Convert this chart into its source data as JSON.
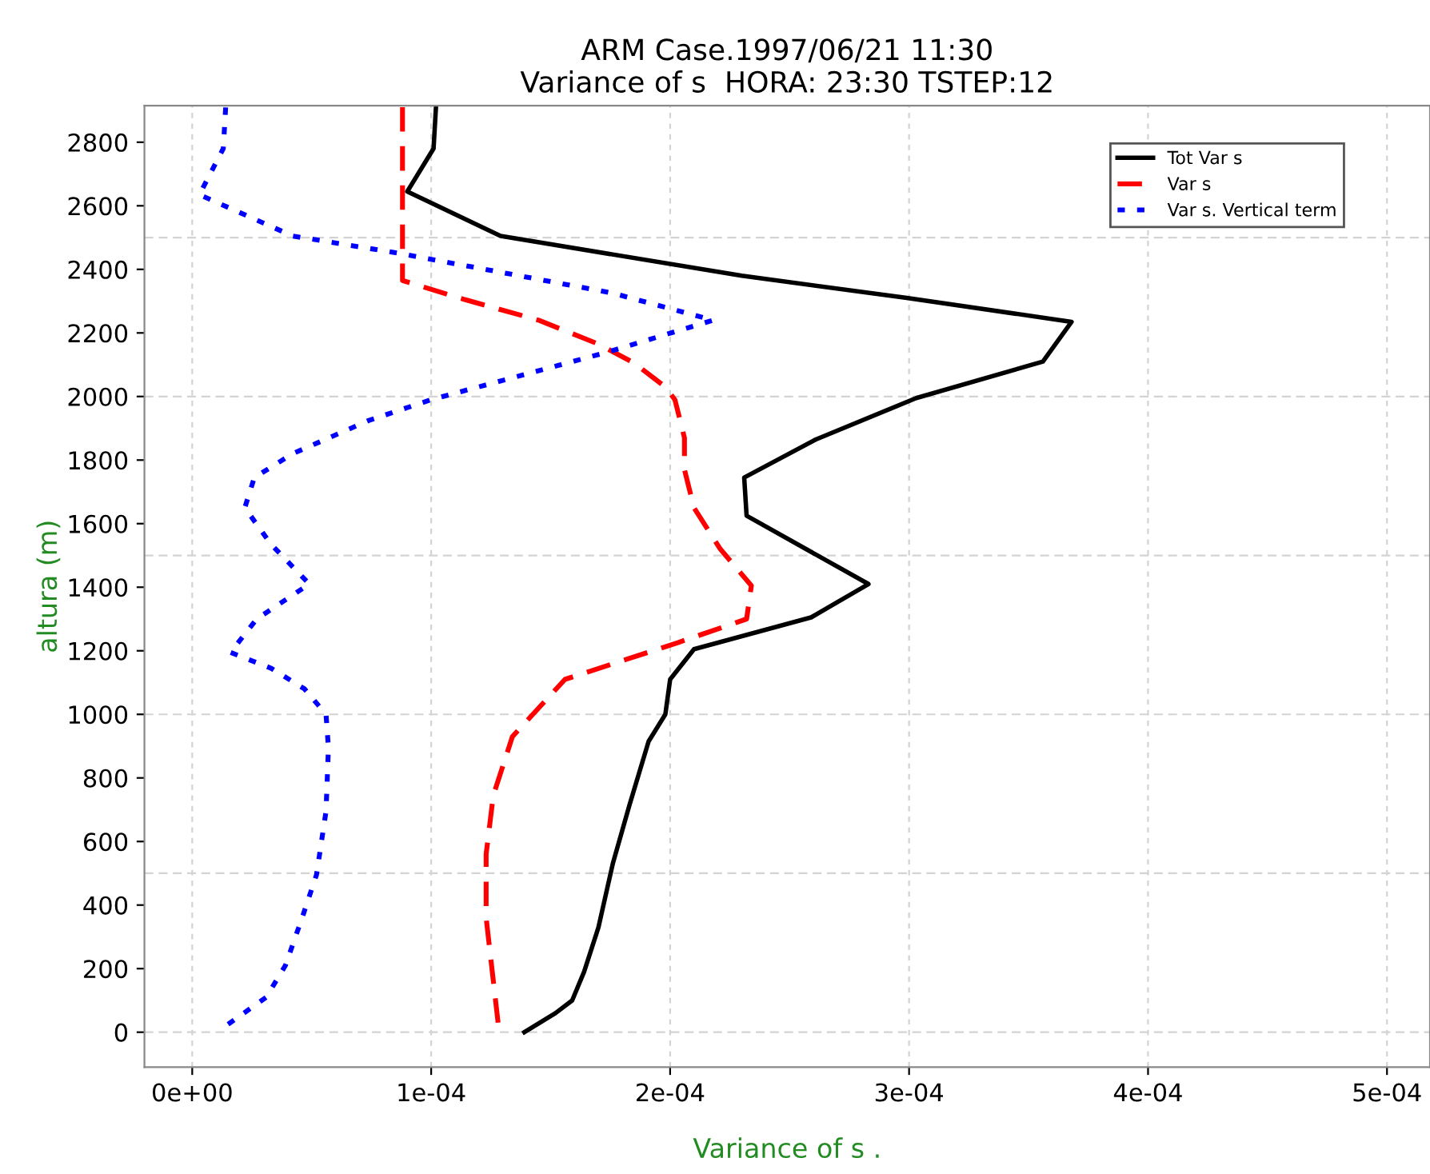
{
  "chart_data": {
    "type": "line",
    "title": "ARM Case.1997/06/21 11:30",
    "subtitle": "Variance of s  HORA: 23:30 TSTEP:12",
    "xlabel": "Variance of s .",
    "ylabel": "altura (m)",
    "series": [
      {
        "name": "Tot Var s",
        "color": "#000000",
        "line_style": "solid",
        "x": [
          0.000139,
          0.000152,
          0.000159,
          0.000164,
          0.00017,
          0.000176,
          0.000183,
          0.000191,
          0.000198,
          0.0002,
          0.00021,
          0.000259,
          0.000283,
          0.000232,
          0.000231,
          0.000261,
          0.000303,
          0.000356,
          0.000368,
          0.000299,
          0.00023,
          0.000129,
          9e-05,
          0.000101,
          0.000102
        ],
        "values": [
          0,
          60,
          100,
          190,
          330,
          530,
          715,
          915,
          1000,
          1110,
          1205,
          1305,
          1410,
          1625,
          1745,
          1865,
          1995,
          2110,
          2235,
          2310,
          2380,
          2505,
          2645,
          2780,
          2910
        ]
      },
      {
        "name": "Var s",
        "color": "#ff0000",
        "line_style": "dashed",
        "x": [
          0.000128,
          0.000123,
          0.000123,
          0.000126,
          0.000134,
          0.000145,
          0.000156,
          0.000203,
          0.000232,
          0.000234,
          0.000221,
          0.00021,
          0.000206,
          0.000206,
          0.000202,
          0.000198,
          0.000185,
          0.00017,
          0.000145,
          0.000114,
          8.8e-05,
          8.8e-05,
          8.8e-05
        ],
        "values": [
          30,
          360,
          560,
          745,
          930,
          1020,
          1110,
          1225,
          1300,
          1405,
          1520,
          1650,
          1770,
          1870,
          1990,
          2030,
          2105,
          2165,
          2240,
          2305,
          2365,
          2440,
          2910
        ]
      },
      {
        "name": "Var s. Vertical term",
        "color": "#0000ff",
        "line_style": "dotted",
        "x": [
          1.5e-05,
          3.1e-05,
          3.9e-05,
          4.6e-05,
          5.2e-05,
          5.6e-05,
          5.7e-05,
          5.6e-05,
          4.7e-05,
          3.3e-05,
          1.6e-05,
          2.7e-05,
          4.9e-05,
          3.3e-05,
          2.2e-05,
          2.6e-05,
          4.2e-05,
          7.4e-05,
          0.0001,
          0.000174,
          0.000218,
          0.000176,
          8.7e-05,
          4.2e-05,
          3e-06,
          1.3e-05,
          1.4e-05
        ],
        "values": [
          25,
          110,
          210,
          360,
          495,
          695,
          895,
          1000,
          1080,
          1145,
          1195,
          1300,
          1410,
          1535,
          1650,
          1745,
          1820,
          1925,
          1990,
          2140,
          2240,
          2325,
          2450,
          2505,
          2635,
          2780,
          2910
        ]
      }
    ],
    "xlim": [
      -2e-05,
      0.000518
    ],
    "xticks": [
      {
        "value": 0,
        "label": "0e+00"
      },
      {
        "value": 0.0001,
        "label": "1e-04"
      },
      {
        "value": 0.0002,
        "label": "2e-04"
      },
      {
        "value": 0.0003,
        "label": "3e-04"
      },
      {
        "value": 0.0004,
        "label": "4e-04"
      },
      {
        "value": 0.0005,
        "label": "5e-04"
      }
    ],
    "ylim": [
      -110,
      2915
    ],
    "yticks": [
      0,
      200,
      400,
      600,
      800,
      1000,
      1200,
      1400,
      1600,
      1800,
      2000,
      2200,
      2400,
      2600,
      2800
    ],
    "ref_lines": [
      {
        "axis": "y",
        "value": 0,
        "color": "#d3d3d3",
        "line_style": "dashed"
      },
      {
        "axis": "y",
        "value": 500,
        "color": "#d3d3d3",
        "line_style": "dashed"
      },
      {
        "axis": "y",
        "value": 1000,
        "color": "#d3d3d3",
        "line_style": "dashed"
      },
      {
        "axis": "y",
        "value": 1500,
        "color": "#d3d3d3",
        "line_style": "dashed"
      },
      {
        "axis": "y",
        "value": 2000,
        "color": "#d3d3d3",
        "line_style": "dashed"
      },
      {
        "axis": "y",
        "value": 2500,
        "color": "#d3d3d3",
        "line_style": "dashed"
      }
    ],
    "grid": "x",
    "legend": "top right"
  }
}
